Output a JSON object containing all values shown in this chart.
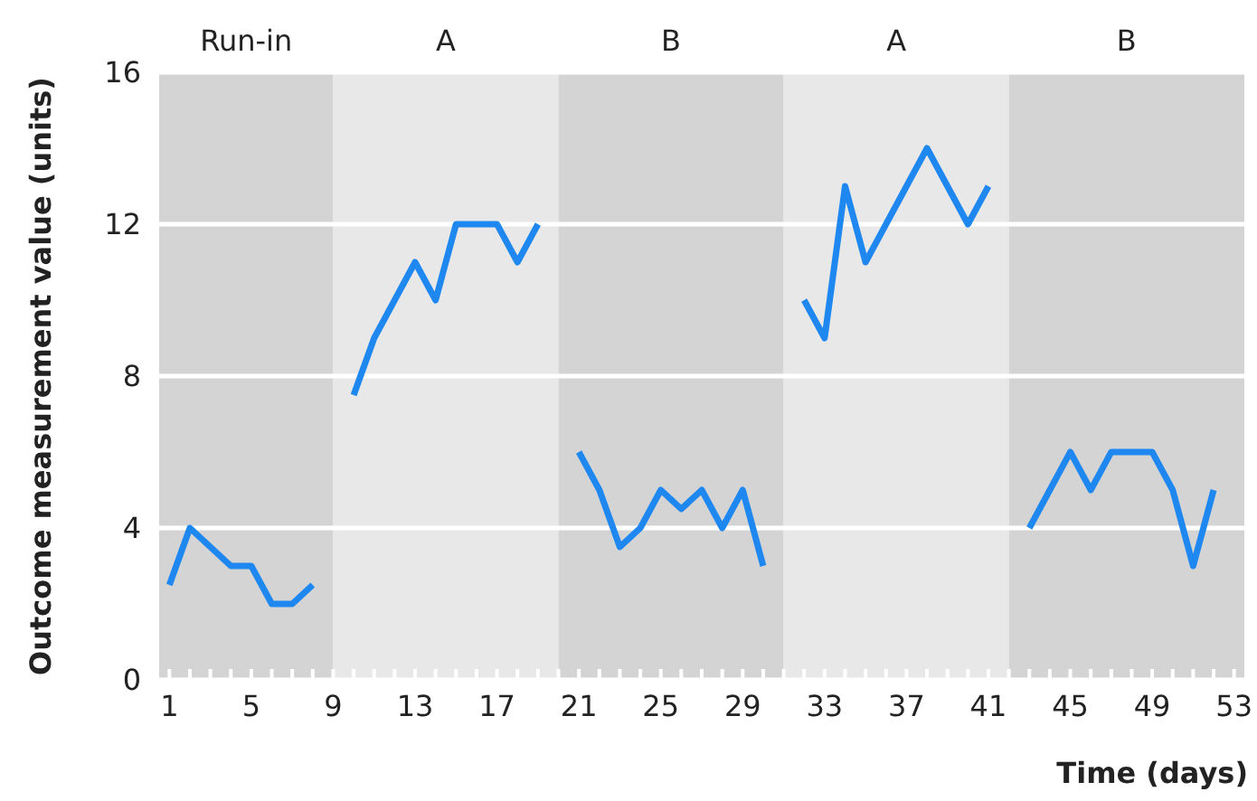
{
  "chart_data": {
    "type": "line",
    "xlabel": "Time (days)",
    "ylabel": "Outcome measurement value (units)",
    "x": [
      1,
      2,
      3,
      4,
      5,
      6,
      7,
      8,
      9,
      10,
      11,
      12,
      13,
      14,
      15,
      16,
      17,
      18,
      19,
      20,
      21,
      22,
      23,
      24,
      25,
      26,
      27,
      28,
      29,
      30,
      31,
      32,
      33,
      34,
      35,
      36,
      37,
      38,
      39,
      40,
      41,
      42,
      43,
      44,
      45,
      46,
      47,
      48,
      49,
      50,
      51,
      52
    ],
    "series": [
      {
        "color": "#1e88f0",
        "values": [
          2.5,
          4,
          3.5,
          3,
          3,
          2,
          2,
          2.5,
          null,
          7.5,
          9,
          10,
          11,
          10,
          12,
          12,
          12,
          11,
          12,
          null,
          6,
          5,
          3.5,
          4,
          5,
          4.5,
          5,
          4,
          5,
          3,
          null,
          10,
          9,
          13,
          11,
          12,
          13,
          14,
          13,
          12,
          13,
          null,
          4,
          5,
          6,
          5,
          6,
          6,
          6,
          5,
          3,
          5
        ]
      }
    ],
    "xlim": [
      0.5,
      53.5
    ],
    "ylim": [
      0,
      16
    ],
    "yticks": [
      0,
      4,
      8,
      12,
      16
    ],
    "xticks": [
      1,
      {
        "value": 2,
        "label": null
      },
      {
        "value": 3,
        "label": null
      },
      {
        "value": 4,
        "label": null
      },
      5,
      {
        "value": 6,
        "label": null
      },
      {
        "value": 7,
        "label": null
      },
      {
        "value": 8,
        "label": null
      },
      9,
      {
        "value": 10,
        "label": null
      },
      {
        "value": 11,
        "label": null
      },
      {
        "value": 12,
        "label": null
      },
      13,
      {
        "value": 14,
        "label": null
      },
      {
        "value": 15,
        "label": null
      },
      {
        "value": 16,
        "label": null
      },
      17,
      {
        "value": 18,
        "label": null
      },
      {
        "value": 19,
        "label": null
      },
      {
        "value": 20,
        "label": null
      },
      21,
      {
        "value": 22,
        "label": null
      },
      {
        "value": 23,
        "label": null
      },
      {
        "value": 24,
        "label": null
      },
      25,
      {
        "value": 26,
        "label": null
      },
      {
        "value": 27,
        "label": null
      },
      {
        "value": 28,
        "label": null
      },
      29,
      {
        "value": 30,
        "label": null
      },
      {
        "value": 31,
        "label": null
      },
      {
        "value": 32,
        "label": null
      },
      33,
      {
        "value": 34,
        "label": null
      },
      {
        "value": 35,
        "label": null
      },
      {
        "value": 36,
        "label": null
      },
      37,
      {
        "value": 38,
        "label": null
      },
      {
        "value": 39,
        "label": null
      },
      {
        "value": 40,
        "label": null
      },
      41,
      {
        "value": 42,
        "label": null
      },
      {
        "value": 43,
        "label": null
      },
      {
        "value": 44,
        "label": null
      },
      45,
      {
        "value": 46,
        "label": null
      },
      {
        "value": 47,
        "label": null
      },
      {
        "value": 48,
        "label": null
      },
      49,
      {
        "value": 50,
        "label": null
      },
      {
        "value": 51,
        "label": null
      },
      {
        "value": 52,
        "label": null
      },
      53
    ],
    "bands": [
      {
        "axis": "x",
        "from": 0.5,
        "to": 9,
        "label": "Run-in",
        "color": "#d4d4d4"
      },
      {
        "axis": "x",
        "from": 9,
        "to": 20,
        "label": "A",
        "color": "#e8e8e8"
      },
      {
        "axis": "x",
        "from": 20,
        "to": 31,
        "label": "B",
        "color": "#d4d4d4"
      },
      {
        "axis": "x",
        "from": 31,
        "to": 42,
        "label": "A",
        "color": "#e8e8e8"
      },
      {
        "axis": "x",
        "from": 42,
        "to": 53.5,
        "label": "B",
        "color": "#d4d4d4"
      }
    ],
    "grid": "y",
    "marker": "none",
    "line_style": "solid"
  }
}
